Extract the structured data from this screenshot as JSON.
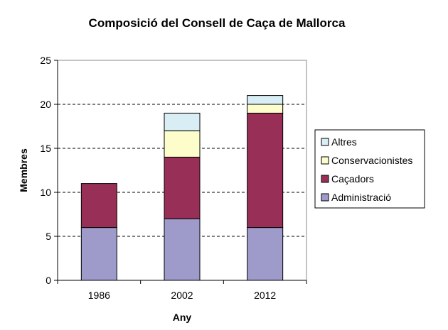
{
  "chart_data": {
    "type": "bar",
    "stacked": true,
    "title": "Composició del Consell de Caça de Mallorca",
    "xlabel": "Any",
    "ylabel": "Membres",
    "categories": [
      "1986",
      "2002",
      "2012"
    ],
    "ylim": [
      0,
      25
    ],
    "yticks": [
      0,
      5,
      10,
      15,
      20,
      25
    ],
    "grid": "horizontal dashed",
    "legend_position": "right",
    "series": [
      {
        "name": "Administració",
        "color": "#9e9bcb",
        "values": [
          6,
          7,
          6
        ]
      },
      {
        "name": "Caçadors",
        "color": "#972f56",
        "values": [
          5,
          7,
          13
        ]
      },
      {
        "name": "Conservacionistes",
        "color": "#fdfccb",
        "values": [
          0,
          3,
          1
        ]
      },
      {
        "name": "Altres",
        "color": "#d8eef4",
        "values": [
          0,
          2,
          1
        ]
      }
    ],
    "legend_order": [
      "Altres",
      "Conservacionistes",
      "Caçadors",
      "Administració"
    ]
  }
}
